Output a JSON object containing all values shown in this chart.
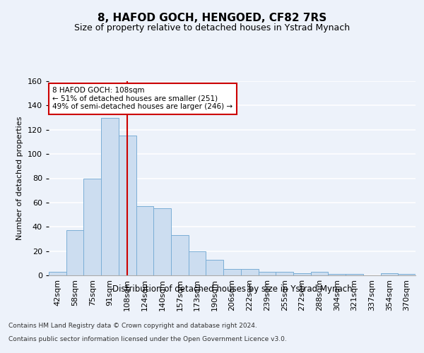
{
  "title": "8, HAFOD GOCH, HENGOED, CF82 7RS",
  "subtitle": "Size of property relative to detached houses in Ystrad Mynach",
  "xlabel": "Distribution of detached houses by size in Ystrad Mynach",
  "ylabel": "Number of detached properties",
  "categories": [
    "42sqm",
    "58sqm",
    "75sqm",
    "91sqm",
    "108sqm",
    "124sqm",
    "140sqm",
    "157sqm",
    "173sqm",
    "190sqm",
    "206sqm",
    "222sqm",
    "239sqm",
    "255sqm",
    "272sqm",
    "288sqm",
    "304sqm",
    "321sqm",
    "337sqm",
    "354sqm",
    "370sqm"
  ],
  "values": [
    3,
    37,
    80,
    130,
    115,
    57,
    55,
    33,
    20,
    13,
    5,
    5,
    3,
    3,
    2,
    3,
    1,
    1,
    0,
    2,
    1
  ],
  "bar_color": "#ccddf0",
  "bar_edge_color": "#7aaed6",
  "property_index": 4,
  "annotation_line1": "8 HAFOD GOCH: 108sqm",
  "annotation_line2": "← 51% of detached houses are smaller (251)",
  "annotation_line3": "49% of semi-detached houses are larger (246) →",
  "annotation_box_color": "#ffffff",
  "annotation_box_edge_color": "#cc0000",
  "vline_color": "#cc0000",
  "footer_line1": "Contains HM Land Registry data © Crown copyright and database right 2024.",
  "footer_line2": "Contains public sector information licensed under the Open Government Licence v3.0.",
  "ylim": [
    0,
    160
  ],
  "yticks": [
    0,
    20,
    40,
    60,
    80,
    100,
    120,
    140,
    160
  ],
  "bg_color": "#edf2fa",
  "plot_bg_color": "#edf2fa",
  "grid_color": "#ffffff",
  "title_fontsize": 11,
  "subtitle_fontsize": 9,
  "ylabel_fontsize": 8,
  "tick_fontsize": 8,
  "annot_fontsize": 7.5,
  "xlabel_fontsize": 8.5,
  "footer_fontsize": 6.5
}
